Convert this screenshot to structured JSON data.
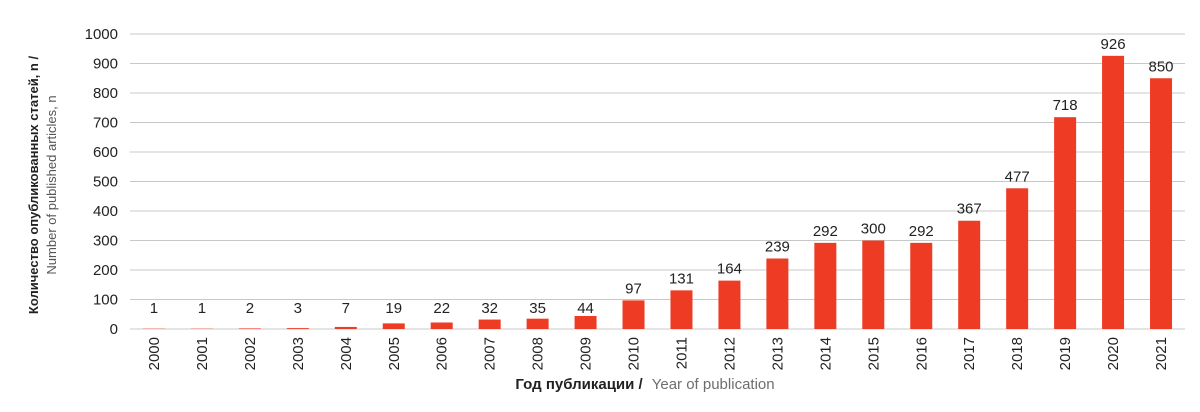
{
  "chart_data": {
    "type": "bar",
    "categories": [
      "2000",
      "2001",
      "2002",
      "2003",
      "2004",
      "2005",
      "2006",
      "2007",
      "2008",
      "2009",
      "2010",
      "2011",
      "2012",
      "2013",
      "2014",
      "2015",
      "2016",
      "2017",
      "2018",
      "2019",
      "2020",
      "2021"
    ],
    "values": [
      1,
      1,
      2,
      3,
      7,
      19,
      22,
      32,
      35,
      44,
      97,
      131,
      164,
      239,
      292,
      300,
      292,
      367,
      477,
      718,
      926,
      850
    ],
    "xlabel": "Год публикации / Year of publication",
    "xlabel_ru": "Год публикации /",
    "xlabel_en": "Year of publication",
    "ylabel_ru": "Количество опубликованных статей, n /",
    "ylabel_en": "Number of published articles, n",
    "ylim": [
      0,
      1000
    ],
    "yticks": [
      0,
      100,
      200,
      300,
      400,
      500,
      600,
      700,
      800,
      900,
      1000
    ],
    "grid": true,
    "bar_color": "#ee3b24",
    "grid_color": "#c8c8c8"
  }
}
